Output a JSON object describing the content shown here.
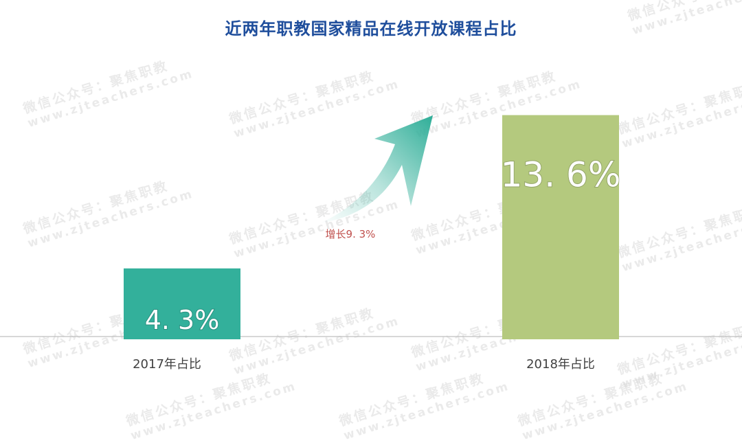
{
  "watermark": {
    "line1": "微信公众号：聚焦职教",
    "line2": "www.zjteachers.com"
  },
  "chart_data": {
    "type": "bar",
    "title": "近两年职教国家精品在线开放课程占比",
    "categories": [
      "2017年占比",
      "2018年占比"
    ],
    "values": [
      4.3,
      13.6
    ],
    "value_labels": [
      "4. 3%",
      "13. 6%"
    ],
    "growth_label": "增长9. 3%",
    "ylim": [
      0,
      15
    ],
    "grid": false,
    "legend": "none",
    "colors": [
      "#33b09b",
      "#b4c97e"
    ],
    "arrow_color": "#2fae98",
    "growth_color": "#c0504d",
    "title_color": "#1f4e9c",
    "baseline_color": "#bfbfbf"
  }
}
